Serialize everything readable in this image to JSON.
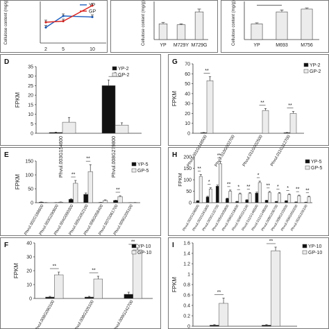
{
  "colors": {
    "yp": "#1f5fbf",
    "gp": "#d9231f",
    "bar_light": "#ececec",
    "bar_dark": "#111111",
    "frame": "#555555"
  },
  "chart_data": [
    {
      "id": "A",
      "type": "line",
      "ylabel": "Cellulose content (mg/g)",
      "x": [
        2,
        5,
        10
      ],
      "xticks": [
        "2",
        "5",
        "10"
      ],
      "series": [
        {
          "name": "YP",
          "values": [
            15,
            26,
            25
          ]
        },
        {
          "name": "GP",
          "values": [
            20,
            21,
            36
          ]
        }
      ],
      "ylim": [
        0,
        40
      ]
    },
    {
      "id": "B",
      "type": "bar",
      "ylabel": "Cellulose content (mg/g)",
      "categories": [
        "YP",
        "M729Y",
        "M729G"
      ],
      "values": [
        33,
        31,
        58
      ],
      "errors": [
        3,
        2,
        6
      ],
      "ylim": [
        0,
        80
      ]
    },
    {
      "id": "C",
      "type": "bar",
      "ylabel": "Cellulose content (mg/g)",
      "categories": [
        "YP",
        "M693",
        "M756"
      ],
      "values": [
        33,
        58,
        64
      ],
      "errors": [
        2,
        4,
        2
      ],
      "ylim": [
        0,
        80
      ]
    },
    {
      "id": "D",
      "type": "bar",
      "panel_label": "D",
      "ylabel": "FPKM",
      "categories": [
        "Phvul.003G154600",
        "Phvul.008G279800"
      ],
      "series": [
        {
          "name": "YP-2",
          "values": [
            0.4,
            25
          ],
          "errors": [
            0.2,
            3
          ]
        },
        {
          "name": "GP-2",
          "values": [
            5.8,
            4.3
          ],
          "errors": [
            2.5,
            1.2
          ]
        }
      ],
      "ylim": [
        0,
        35
      ],
      "yticks": [
        0,
        5,
        10,
        15,
        20,
        25,
        30,
        35
      ],
      "sig": [
        {
          "cat": 1,
          "text": "*"
        }
      ]
    },
    {
      "id": "G",
      "type": "bar",
      "panel_label": "G",
      "ylabel": "FPKM",
      "categories": [
        "Phvul.001G148500",
        "Phvul.010G002700",
        "Phvul.011G002500",
        "Phvul.011G112700"
      ],
      "series": [
        {
          "name": "YP-2",
          "values": [
            0.6,
            0,
            0,
            0.6
          ],
          "errors": [
            0.2,
            0,
            0,
            0.2
          ]
        },
        {
          "name": "GP-2",
          "values": [
            53,
            0,
            23,
            20
          ],
          "errors": [
            4,
            0,
            2,
            2
          ]
        }
      ],
      "ylim": [
        0,
        70
      ],
      "yticks": [
        0,
        10,
        20,
        30,
        40,
        50,
        60,
        70
      ],
      "sig": [
        {
          "cat": 0,
          "text": "**"
        },
        {
          "cat": 2,
          "text": "**"
        },
        {
          "cat": 3,
          "text": "**"
        }
      ]
    },
    {
      "id": "E",
      "type": "bar",
      "panel_label": "E",
      "ylabel": "FPKM",
      "categories": [
        "Phvul.002G188600",
        "Phvul.003G290600",
        "Phvul.004G090300",
        "Phvul.005G052100",
        "Phvul.006G058400",
        "Phvul.007G061700",
        "Phvul.009G205100"
      ],
      "series": [
        {
          "name": "YP-5",
          "values": [
            2,
            0.5,
            12,
            30,
            1,
            8,
            0.3
          ],
          "errors": [
            0.5,
            0.2,
            2,
            5,
            0.3,
            1,
            0.1
          ]
        },
        {
          "name": "GP-5",
          "values": [
            0.5,
            2,
            70,
            112,
            8,
            22,
            0.5
          ],
          "errors": [
            0.2,
            0.5,
            10,
            25,
            2,
            3,
            0.2
          ]
        }
      ],
      "ylim": [
        0,
        150
      ],
      "yticks": [
        0,
        50,
        100,
        150
      ],
      "sig": [
        {
          "cat": 2,
          "text": "**"
        },
        {
          "cat": 3,
          "text": "**"
        },
        {
          "cat": 5,
          "text": "**"
        }
      ]
    },
    {
      "id": "H",
      "type": "bar",
      "panel_label": "H",
      "ylabel": "FPKM",
      "categories": [
        "Phvul.002G206600",
        "Phvul.002G261800",
        "Phvul.003G132700",
        "Phvul.005G005800",
        "Phvul.006G218400",
        "Phvul.009G021100",
        "Phvul.011G146500",
        "Phvul.011G148000",
        "Phvul.008G206700",
        "Phvul.008G215500",
        "Phvul.006G050200",
        "Phvul.003G205100"
      ],
      "series": [
        {
          "name": "YP-5",
          "values": [
            8,
            25,
            72,
            18,
            5,
            12,
            42,
            10,
            5,
            8,
            3,
            2
          ],
          "errors": [
            1,
            3,
            5,
            2,
            1,
            1,
            4,
            1,
            1,
            1,
            0.5,
            0.5
          ]
        },
        {
          "name": "GP-5",
          "values": [
            115,
            60,
            170,
            50,
            38,
            40,
            88,
            45,
            40,
            35,
            30,
            25
          ],
          "errors": [
            8,
            5,
            10,
            5,
            4,
            4,
            6,
            4,
            4,
            3,
            3,
            3
          ]
        }
      ],
      "ylim": [
        0,
        200
      ],
      "yticks": [
        0,
        50,
        100,
        150,
        200
      ],
      "sig_text": [
        "**",
        "*",
        "**",
        "**",
        "*",
        "**",
        "*",
        "**",
        "*",
        "*",
        "**",
        "**"
      ]
    },
    {
      "id": "F",
      "type": "bar",
      "panel_label": "F",
      "ylabel": "FPKM",
      "categories": [
        "Phvul.008G090100",
        "Phvul.008G205100",
        "Phvul.009G242700"
      ],
      "series": [
        {
          "name": "YP-10",
          "values": [
            1,
            1,
            3
          ],
          "errors": [
            0.5,
            0.5,
            1.5
          ]
        },
        {
          "name": "GP-10",
          "values": [
            17,
            14,
            35
          ],
          "errors": [
            2,
            2,
            1.5
          ]
        }
      ],
      "ylim": [
        0,
        40
      ],
      "yticks": [
        0,
        10,
        20,
        30,
        40
      ],
      "sig": [
        {
          "cat": 0,
          "text": "**"
        },
        {
          "cat": 1,
          "text": "**"
        },
        {
          "cat": 2,
          "text": "**"
        }
      ]
    },
    {
      "id": "I",
      "type": "bar",
      "panel_label": "I",
      "ylabel": "FPKM",
      "categories": [
        "",
        ""
      ],
      "series": [
        {
          "name": "YP-10",
          "values": [
            0.02,
            0.02
          ],
          "errors": [
            0.01,
            0.01
          ]
        },
        {
          "name": "GP-10",
          "values": [
            0.44,
            1.45
          ],
          "errors": [
            0.1,
            0.07
          ]
        }
      ],
      "ylim": [
        0,
        1.6
      ],
      "yticks": [
        0,
        0.2,
        0.4,
        0.6,
        0.8,
        1.0,
        1.2,
        1.4,
        1.6
      ],
      "ytick_labels": [
        "0",
        "0.2",
        "0.4",
        "0.6",
        "0.8",
        "1",
        "1.2",
        "1.4",
        "1.6"
      ],
      "sig": [
        {
          "cat": 0,
          "text": "**"
        },
        {
          "cat": 1,
          "text": "**"
        }
      ]
    }
  ]
}
